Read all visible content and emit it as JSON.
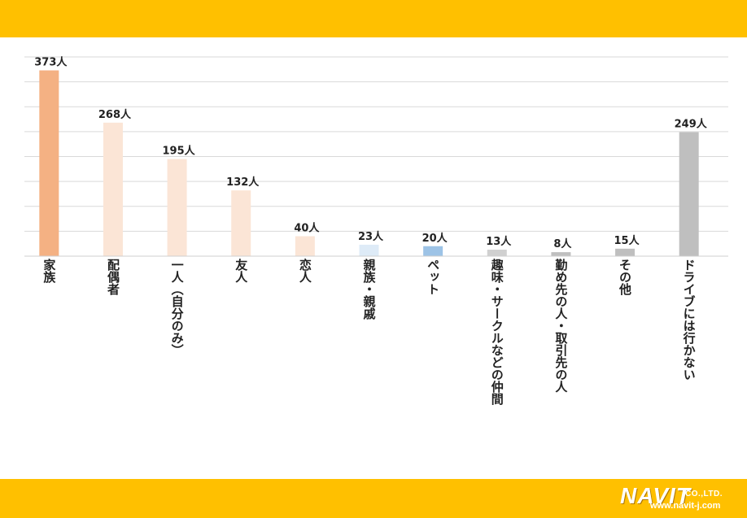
{
  "chart_data": {
    "type": "bar",
    "title": "",
    "xlabel": "",
    "ylabel": "",
    "ylim": [
      0,
      400
    ],
    "grid": true,
    "unit": "人",
    "categories": [
      "家族",
      "配偶者",
      "一人（自分のみ）",
      "友人",
      "恋人",
      "親族・親戚",
      "ペット",
      "趣味・サークルなどの仲間",
      "勤め先の人・取引先の人",
      "その他",
      "ドライブには行かない"
    ],
    "values": [
      373,
      268,
      195,
      132,
      40,
      23,
      20,
      13,
      8,
      15,
      249
    ],
    "data_labels": [
      "373人",
      "268人",
      "195人",
      "132人",
      "40人",
      "23人",
      "20人",
      "13人",
      "8人",
      "15人",
      "249人"
    ],
    "colors": [
      "#F4B183",
      "#FBE5D6",
      "#FBE5D6",
      "#FBE5D6",
      "#FBE5D6",
      "#DEEBF7",
      "#9DC3E6",
      "#D0D0D0",
      "#BFBFBF",
      "#BFBFBF",
      "#BFBFBF"
    ]
  },
  "footer": {
    "brand": "NAVIT",
    "company_suffix": "CO.,LTD.",
    "url": "www.navit-j.com"
  }
}
